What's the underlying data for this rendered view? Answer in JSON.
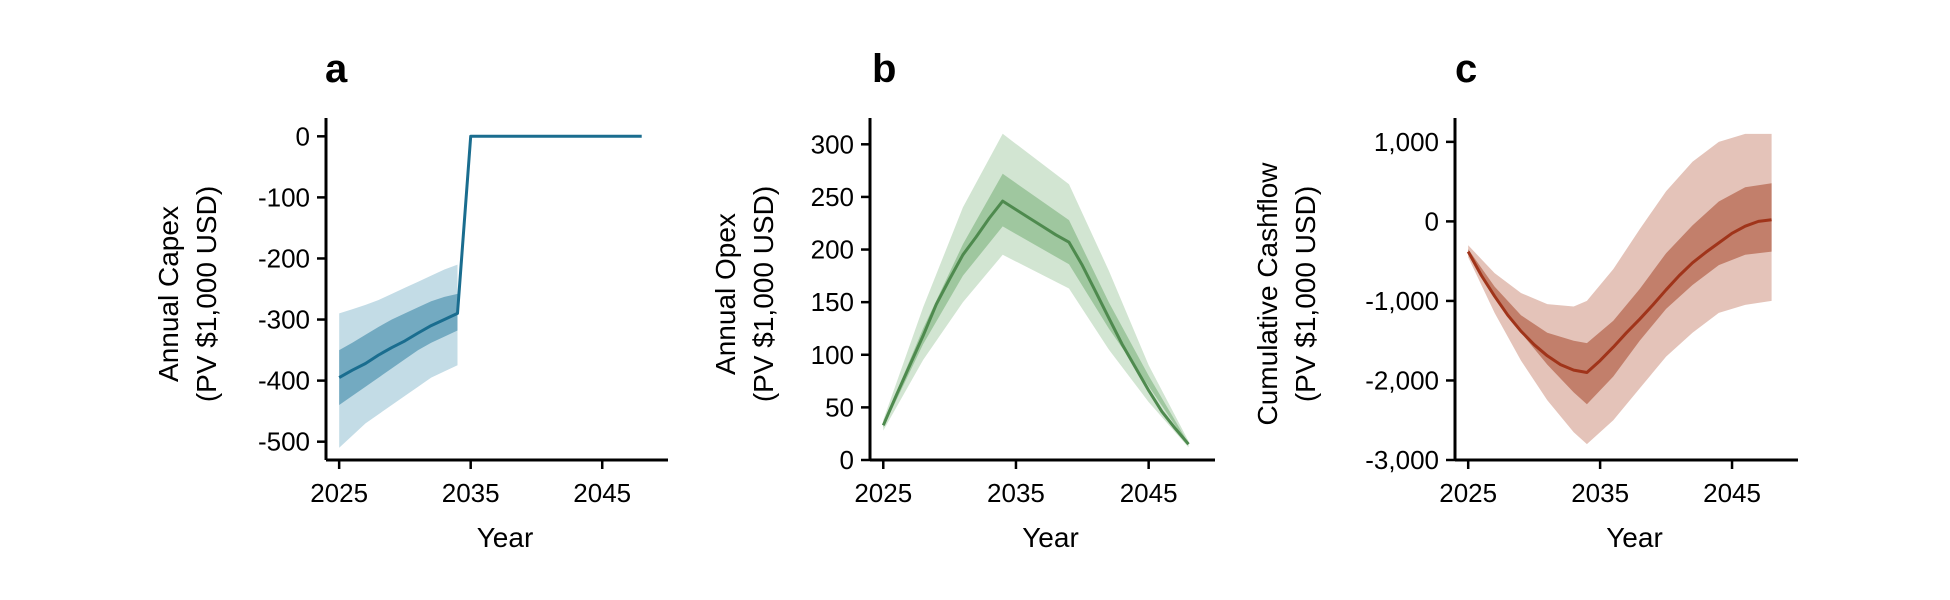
{
  "chart_data": [
    {
      "type": "area",
      "panel_label": "a",
      "xlabel": "Year",
      "ylabel": [
        "Annual Capex",
        "(PV $1,000 USD)"
      ],
      "xlim": [
        2024,
        2050
      ],
      "ylim": [
        -530,
        30
      ],
      "xticks": [
        2025,
        2035,
        2045
      ],
      "xtick_labels": [
        "2025",
        "2035",
        "2045"
      ],
      "yticks": [
        -500,
        -400,
        -300,
        -200,
        -100,
        0
      ],
      "ytick_labels": [
        "-500",
        "-400",
        "-300",
        "-200",
        "-100",
        "0"
      ],
      "color": "#1a6d8f",
      "outer_band_color": "#c3dce6",
      "inner_band_color": "#73aac1",
      "bands": {
        "x": [
          2025,
          2026,
          2027,
          2028,
          2029,
          2030,
          2031,
          2032,
          2033,
          2034
        ],
        "outer_lower": [
          -510,
          -490,
          -470,
          -455,
          -440,
          -425,
          -410,
          -395,
          -385,
          -375
        ],
        "outer_upper": [
          -290,
          -283,
          -276,
          -268,
          -258,
          -248,
          -238,
          -228,
          -218,
          -210
        ],
        "inner_lower": [
          -440,
          -425,
          -410,
          -395,
          -380,
          -365,
          -350,
          -338,
          -328,
          -318
        ],
        "inner_upper": [
          -350,
          -338,
          -325,
          -312,
          -300,
          -290,
          -280,
          -270,
          -263,
          -258
        ]
      },
      "x": [
        2025,
        2026,
        2027,
        2028,
        2029,
        2030,
        2031,
        2032,
        2033,
        2034,
        2035,
        2036,
        2037,
        2038,
        2039,
        2040,
        2041,
        2042,
        2043,
        2044,
        2045,
        2046,
        2047,
        2048
      ],
      "median": [
        -395,
        -383,
        -372,
        -358,
        -346,
        -335,
        -322,
        -310,
        -300,
        -290,
        0,
        0,
        0,
        0,
        0,
        0,
        0,
        0,
        0,
        0,
        0,
        0,
        0,
        0
      ]
    },
    {
      "type": "area",
      "panel_label": "b",
      "xlabel": "Year",
      "ylabel": [
        "Annual Opex",
        "(PV $1,000 USD)"
      ],
      "xlim": [
        2024,
        2050
      ],
      "ylim": [
        0,
        325
      ],
      "xticks": [
        2025,
        2035,
        2045
      ],
      "xtick_labels": [
        "2025",
        "2035",
        "2045"
      ],
      "yticks": [
        0,
        50,
        100,
        150,
        200,
        250,
        300
      ],
      "ytick_labels": [
        "0",
        "50",
        "100",
        "150",
        "200",
        "250",
        "300"
      ],
      "color": "#4e8a4e",
      "outer_band_color": "#d2e5d2",
      "inner_band_color": "#9fc79f",
      "bands": {
        "x": [
          2025,
          2028,
          2031,
          2034,
          2039,
          2042,
          2045,
          2048
        ],
        "outer_lower": [
          28,
          95,
          150,
          195,
          163,
          105,
          55,
          12
        ],
        "outer_upper": [
          38,
          145,
          240,
          310,
          262,
          180,
          90,
          18
        ],
        "inner_lower": [
          31,
          110,
          175,
          222,
          186,
          125,
          70,
          14
        ],
        "inner_upper": [
          35,
          125,
          205,
          272,
          228,
          150,
          80,
          16
        ]
      },
      "x": [
        2025,
        2026,
        2027,
        2028,
        2029,
        2030,
        2031,
        2032,
        2033,
        2034,
        2035,
        2036,
        2037,
        2038,
        2039,
        2040,
        2041,
        2042,
        2043,
        2044,
        2045,
        2046,
        2047,
        2048
      ],
      "median": [
        33,
        62,
        90,
        118,
        148,
        172,
        195,
        212,
        230,
        246,
        238,
        230,
        222,
        214,
        207,
        185,
        160,
        135,
        110,
        88,
        66,
        46,
        30,
        15
      ]
    },
    {
      "type": "area",
      "panel_label": "c",
      "xlabel": "Year",
      "ylabel": [
        "Cumulative Cashflow",
        "(PV $1,000 USD)"
      ],
      "xlim": [
        2024,
        2050
      ],
      "ylim": [
        -3000,
        1300
      ],
      "xticks": [
        2025,
        2035,
        2045
      ],
      "xtick_labels": [
        "2025",
        "2035",
        "2045"
      ],
      "yticks": [
        -3000,
        -2000,
        -1000,
        0,
        1000
      ],
      "ytick_labels": [
        "-3,000",
        "-2,000",
        "-1,000",
        "0",
        "1,000"
      ],
      "color": "#a0341a",
      "outer_band_color": "#e4c3b9",
      "inner_band_color": "#c27f6b",
      "bands": {
        "x": [
          2025,
          2027,
          2029,
          2031,
          2033,
          2034,
          2036,
          2038,
          2040,
          2042,
          2044,
          2046,
          2048
        ],
        "outer_lower": [
          -450,
          -1150,
          -1750,
          -2250,
          -2650,
          -2800,
          -2500,
          -2100,
          -1700,
          -1400,
          -1150,
          -1050,
          -1000
        ],
        "outer_upper": [
          -300,
          -650,
          -900,
          -1040,
          -1070,
          -1000,
          -600,
          -100,
          380,
          750,
          1000,
          1100,
          1100
        ],
        "inner_lower": [
          -400,
          -950,
          -1400,
          -1800,
          -2150,
          -2300,
          -1950,
          -1500,
          -1100,
          -800,
          -550,
          -420,
          -380
        ],
        "inner_upper": [
          -350,
          -820,
          -1180,
          -1400,
          -1500,
          -1530,
          -1250,
          -850,
          -400,
          -50,
          250,
          430,
          480
        ]
      },
      "x": [
        2025,
        2026,
        2027,
        2028,
        2029,
        2030,
        2031,
        2032,
        2033,
        2034,
        2035,
        2036,
        2037,
        2038,
        2039,
        2040,
        2041,
        2042,
        2043,
        2044,
        2045,
        2046,
        2047,
        2048
      ],
      "median": [
        -380,
        -680,
        -940,
        -1180,
        -1380,
        -1550,
        -1690,
        -1800,
        -1870,
        -1900,
        -1750,
        -1580,
        -1400,
        -1230,
        -1050,
        -860,
        -680,
        -520,
        -390,
        -270,
        -150,
        -60,
        0,
        20
      ]
    }
  ]
}
